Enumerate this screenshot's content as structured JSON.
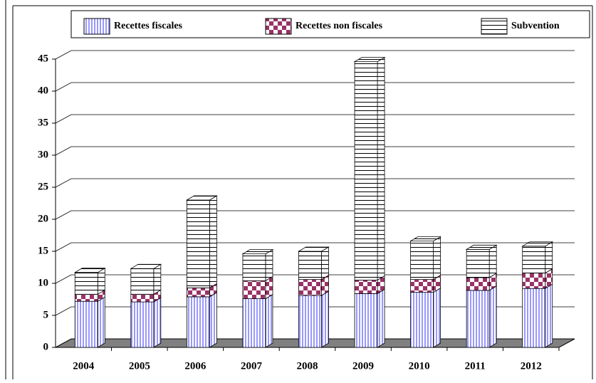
{
  "chart_data": {
    "type": "bar",
    "stacked": true,
    "categories": [
      "2004",
      "2005",
      "2006",
      "2007",
      "2008",
      "2009",
      "2010",
      "2011",
      "2012"
    ],
    "series": [
      {
        "name": "Recettes fiscales",
        "color": "#9999ff",
        "values": [
          7.2,
          7.1,
          7.9,
          7.6,
          8.1,
          8.4,
          8.6,
          8.9,
          9.2
        ]
      },
      {
        "name": "Recettes non fiscales",
        "color": "#993366",
        "values": [
          1.1,
          1.2,
          1.4,
          2.8,
          2.5,
          2.1,
          2.0,
          2.0,
          2.4
        ]
      },
      {
        "name": "Subvention",
        "color": "#000000",
        "values": [
          3.4,
          4.0,
          13.7,
          4.2,
          4.4,
          34.1,
          6.0,
          4.4,
          4.2
        ]
      }
    ],
    "ylim": [
      0,
      45
    ],
    "yticks": [
      0,
      5,
      10,
      15,
      20,
      25,
      30,
      35,
      40,
      45
    ],
    "grid": true
  }
}
